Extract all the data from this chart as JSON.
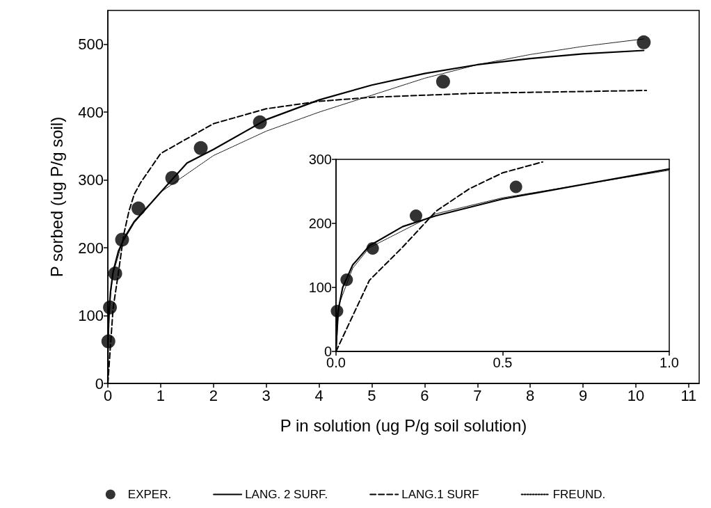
{
  "chart_data": [
    {
      "type": "line",
      "xlabel": "P in solution (ug P/g soil solution)",
      "ylabel": "P sorbed (ug P/g soil)",
      "xlim": [
        0,
        11.2
      ],
      "ylim": [
        0,
        550
      ],
      "xticks": [
        0,
        1,
        2,
        3,
        4,
        5,
        6,
        7,
        8,
        9,
        10,
        11
      ],
      "yticks": [
        0,
        100,
        200,
        300,
        400,
        500
      ],
      "grid": false,
      "legend": "bottom",
      "series": [
        {
          "name": "EXPER.",
          "type": "scatter",
          "marker": "circle",
          "color": "#000000",
          "x": [
            0.01,
            0.04,
            0.14,
            0.27,
            0.58,
            1.22,
            1.76,
            2.88,
            6.35,
            10.15
          ],
          "values": [
            62,
            112,
            162,
            212,
            258,
            303,
            347,
            385,
            445,
            503
          ]
        },
        {
          "name": "LANG. 2 SURF.",
          "line_style": "solid",
          "color": "#000000",
          "x": [
            0,
            0.005,
            0.02,
            0.05,
            0.1,
            0.2,
            0.3,
            0.5,
            1,
            1.5,
            2,
            3,
            4,
            5,
            6,
            7,
            8,
            9,
            10.15
          ],
          "values": [
            0,
            60,
            100,
            135,
            165,
            195,
            212,
            238,
            282,
            325,
            345,
            389,
            418,
            440,
            457,
            470,
            479,
            486,
            491
          ]
        },
        {
          "name": "LANG.1 SURF",
          "line_style": "dashed",
          "color": "#000000",
          "x": [
            0,
            0.1,
            0.2,
            0.3,
            0.4,
            0.5,
            0.62,
            1,
            2,
            3,
            4,
            5,
            7,
            10.2
          ],
          "values": [
            0,
            111,
            163,
            219,
            254,
            279,
            296,
            339,
            383,
            405,
            416,
            422,
            428,
            432
          ]
        },
        {
          "name": "FREUND.",
          "line_style": "dotted",
          "color": "#000000",
          "x": [
            0,
            0.01,
            0.05,
            0.1,
            0.3,
            0.5,
            1,
            2,
            3,
            4,
            5,
            6,
            7,
            8,
            9,
            10.15
          ],
          "values": [
            0,
            75,
            130,
            162,
            215,
            240,
            282,
            336,
            372,
            400,
            425,
            450,
            470,
            485,
            497,
            508
          ]
        }
      ]
    },
    {
      "type": "line",
      "xlim": [
        0,
        1
      ],
      "ylim": [
        0,
        300
      ],
      "xticks": [
        {
          "value": 0,
          "label": "0.0"
        },
        0.5,
        {
          "value": 1,
          "label": "1.0"
        }
      ],
      "yticks": [
        0,
        100,
        200,
        300
      ],
      "grid": false,
      "legend": false,
      "series": [
        {
          "type": "scatter",
          "marker": "circle",
          "color": "#000000",
          "x": [
            0.003,
            0.032,
            0.11,
            0.24,
            0.54
          ],
          "values": [
            63,
            112,
            161,
            212,
            257
          ]
        },
        {
          "line_style": "solid",
          "color": "#000000",
          "x": [
            0,
            0.005,
            0.02,
            0.05,
            0.1,
            0.2,
            0.3,
            0.5,
            0.7,
            1
          ],
          "values": [
            0,
            60,
            100,
            135,
            165,
            195,
            212,
            238,
            257,
            285
          ]
        },
        {
          "line_style": "dashed",
          "color": "#000000",
          "x": [
            0,
            0.1,
            0.2,
            0.3,
            0.4,
            0.5,
            0.62
          ],
          "values": [
            0,
            111,
            163,
            219,
            254,
            279,
            296
          ]
        },
        {
          "line_style": "dotted",
          "color": "#000000",
          "x": [
            0,
            0.01,
            0.05,
            0.1,
            0.3,
            0.5,
            1
          ],
          "values": [
            0,
            75,
            130,
            162,
            215,
            240,
            283
          ]
        }
      ]
    }
  ]
}
